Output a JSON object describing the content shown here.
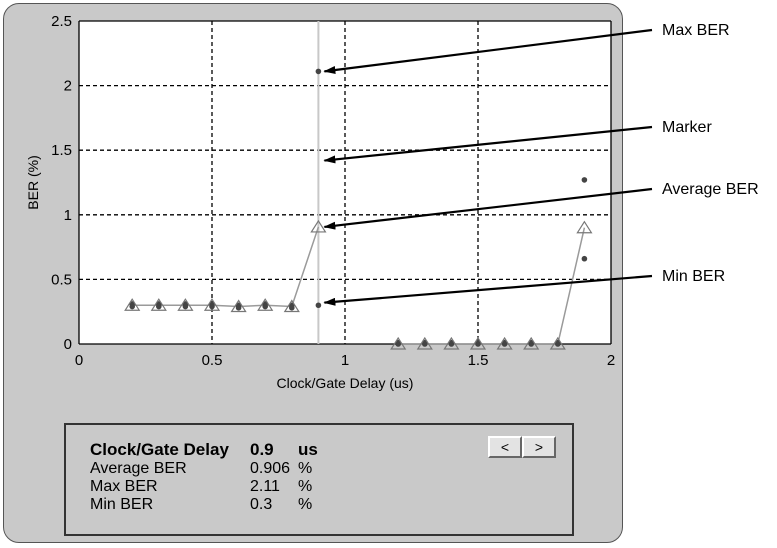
{
  "chart_data": {
    "type": "scatter",
    "xlabel": "Clock/Gate Delay (us)",
    "ylabel": "BER (%)",
    "xlim": [
      0,
      2
    ],
    "ylim": [
      0,
      2.5
    ],
    "x_ticks": [
      "0",
      "0.5",
      "1",
      "1.5",
      "2"
    ],
    "y_ticks": [
      "0",
      "0.5",
      "1",
      "1.5",
      "2",
      "2.5"
    ],
    "grid": true,
    "marker_x": 0.9,
    "series": [
      {
        "name": "Average BER",
        "marker": "triangle",
        "x": [
          0.2,
          0.3,
          0.4,
          0.5,
          0.6,
          0.7,
          0.8,
          0.9,
          1.2,
          1.3,
          1.4,
          1.5,
          1.6,
          1.7,
          1.8,
          1.9
        ],
        "values": [
          0.3,
          0.3,
          0.3,
          0.3,
          0.29,
          0.3,
          0.29,
          0.906,
          0.0,
          0.0,
          0.0,
          0.0,
          0.0,
          0.0,
          0.0,
          0.9
        ],
        "segments": [
          [
            0,
            7
          ],
          [
            8,
            15
          ]
        ]
      },
      {
        "name": "Max BER",
        "marker": "dot",
        "x": [
          0.2,
          0.3,
          0.4,
          0.5,
          0.6,
          0.7,
          0.8,
          0.9,
          1.2,
          1.3,
          1.4,
          1.5,
          1.6,
          1.7,
          1.8,
          1.9
        ],
        "values": [
          0.31,
          0.31,
          0.31,
          0.31,
          0.3,
          0.31,
          0.3,
          2.11,
          0.01,
          0.01,
          0.01,
          0.01,
          0.01,
          0.01,
          0.01,
          1.27
        ]
      },
      {
        "name": "Min BER",
        "marker": "dot",
        "x": [
          0.2,
          0.3,
          0.4,
          0.5,
          0.6,
          0.7,
          0.8,
          0.9,
          1.2,
          1.3,
          1.4,
          1.5,
          1.6,
          1.7,
          1.8,
          1.9
        ],
        "values": [
          0.29,
          0.29,
          0.29,
          0.29,
          0.28,
          0.29,
          0.28,
          0.3,
          0.0,
          0.0,
          0.0,
          0.0,
          0.0,
          0.0,
          0.0,
          0.66
        ]
      }
    ],
    "annotations": [
      {
        "text": "Max BER",
        "target": [
          0.9,
          2.11
        ]
      },
      {
        "text": "Marker",
        "target": [
          0.9,
          1.42
        ]
      },
      {
        "text": "Average BER",
        "target": [
          0.9,
          0.906
        ]
      },
      {
        "text": "Min BER",
        "target": [
          0.9,
          0.32
        ]
      }
    ]
  },
  "readout": {
    "title_label": "Clock/Gate Delay",
    "title_value": "0.9",
    "title_unit": "us",
    "rows": [
      {
        "label": "Average BER",
        "value": "0.906",
        "unit": "%"
      },
      {
        "label": "Max BER",
        "value": "2.11",
        "unit": "%"
      },
      {
        "label": "Min BER",
        "value": "0.3",
        "unit": "%"
      }
    ],
    "prev_label": "<",
    "next_label": ">"
  },
  "colors": {
    "panel": "#c9c9c9",
    "plot_bg": "#ffffff",
    "grid": "#000000",
    "series_line": "#9a9a9a",
    "marker_line": "#c8c8c8",
    "point": "#444444"
  }
}
